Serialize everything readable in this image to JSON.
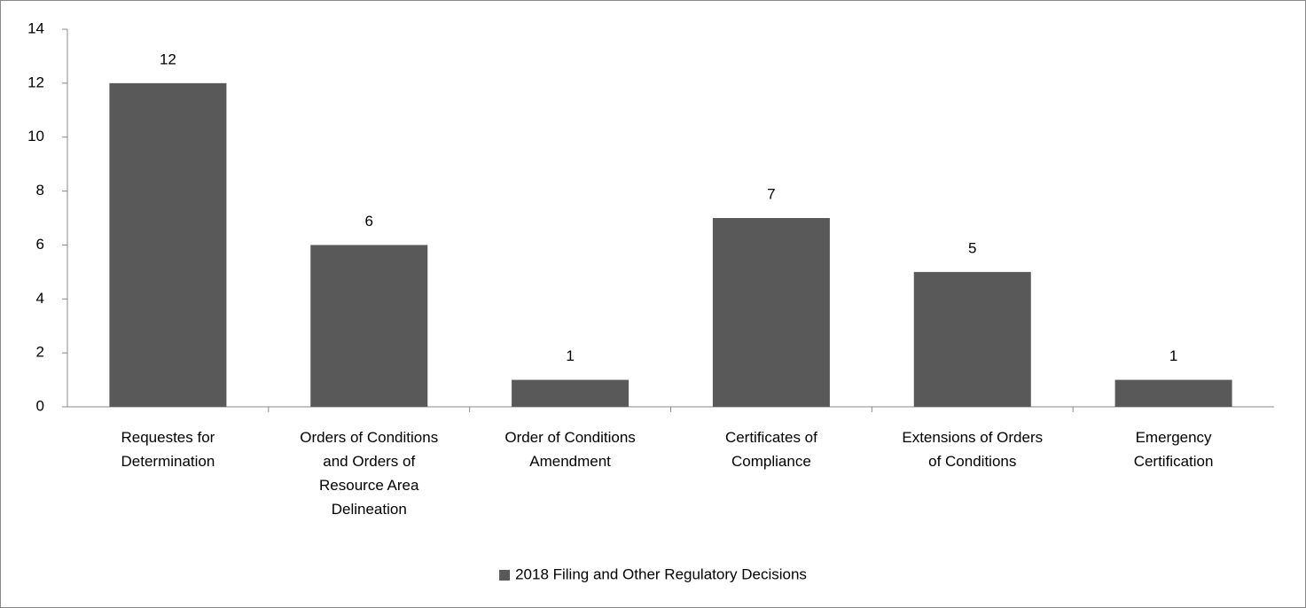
{
  "chart_data": {
    "type": "bar",
    "categories": [
      "Requestes for Determination",
      "Orders of Conditions and Orders of Resource Area Delineation",
      "Order of Conditions Amendment",
      "Certificates of Compliance",
      "Extensions of Orders of Conditions",
      "Emergency Certification"
    ],
    "series": [
      {
        "name": "2018 Filing and Other Regulatory Decisions",
        "color": "#595959",
        "values": [
          12,
          6,
          1,
          7,
          5,
          1
        ]
      }
    ],
    "ylim": [
      0,
      14
    ],
    "yticks": [
      0,
      2,
      4,
      6,
      8,
      10,
      12,
      14
    ],
    "grid": false,
    "legend": "bottom"
  }
}
